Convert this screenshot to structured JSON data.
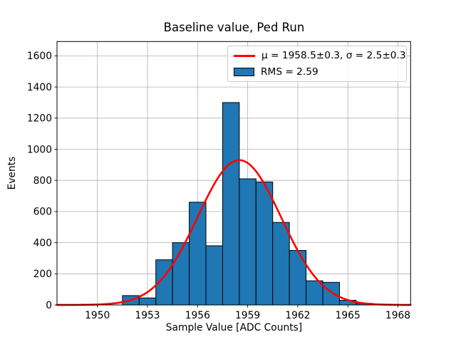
{
  "window": {
    "kind": "static-plot-image",
    "background": "#ffffff"
  },
  "chart_data": {
    "type": "bar",
    "subtype": "histogram-with-gaussian-fit",
    "title": "Baseline value, Ped Run",
    "xlabel": "Sample Value [ADC Counts]",
    "ylabel": "Events",
    "xlim": [
      1947.58,
      1968.76
    ],
    "ylim": [
      0,
      1692
    ],
    "xticks": [
      1950,
      1953,
      1956,
      1959,
      1962,
      1965,
      1968
    ],
    "yticks": [
      0,
      200,
      400,
      600,
      800,
      1000,
      1200,
      1400,
      1600
    ],
    "grid": true,
    "bin_width": 1,
    "bin_centers": [
      1952,
      1953,
      1954,
      1955,
      1956,
      1957,
      1958,
      1959,
      1960,
      1961,
      1962,
      1963,
      1964,
      1965,
      1966
    ],
    "counts": [
      60,
      45,
      290,
      400,
      660,
      380,
      1300,
      810,
      790,
      530,
      350,
      155,
      145,
      30,
      10
    ],
    "fit": {
      "mu": 1958.5,
      "sigma": 2.5,
      "amplitude": 930
    },
    "legend": {
      "position": "upper right",
      "fit_label": "μ = 1958.5±0.3, σ = 2.5±0.3",
      "hist_label": "RMS = 2.59"
    },
    "colors": {
      "bar_fill": "#1f77b4",
      "bar_edge": "#000000",
      "fit_line": "#ff0000",
      "grid": "#b0b0b0",
      "axes": "#000000",
      "text": "#000000"
    }
  }
}
